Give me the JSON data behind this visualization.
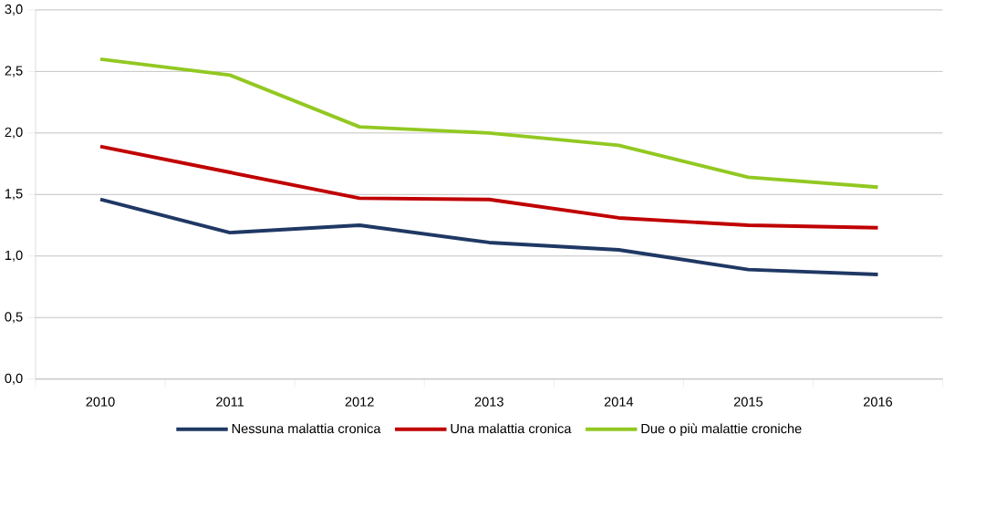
{
  "chart_data": {
    "type": "line",
    "categories": [
      "2010",
      "2011",
      "2012",
      "2013",
      "2014",
      "2015",
      "2016"
    ],
    "series": [
      {
        "name": "Nessuna malattia cronica",
        "color": "#1f3864",
        "values": [
          1.46,
          1.19,
          1.25,
          1.11,
          1.05,
          0.89,
          0.85
        ]
      },
      {
        "name": "Una malattia cronica",
        "color": "#c00000",
        "values": [
          1.89,
          1.68,
          1.47,
          1.46,
          1.31,
          1.25,
          1.23
        ]
      },
      {
        "name": "Due o più malattie croniche",
        "color": "#92c821",
        "values": [
          2.6,
          2.47,
          2.05,
          2.0,
          1.9,
          1.64,
          1.56
        ]
      }
    ],
    "ylim": [
      0,
      3
    ],
    "yticks": [
      {
        "value": 0,
        "label": "0,0"
      },
      {
        "value": 0.5,
        "label": "0,5"
      },
      {
        "value": 1,
        "label": "1,0"
      },
      {
        "value": 1.5,
        "label": "1,5"
      },
      {
        "value": 2,
        "label": "2,0"
      },
      {
        "value": 2.5,
        "label": "2,5"
      },
      {
        "value": 3,
        "label": "3,0"
      }
    ],
    "grid": "y",
    "legend": "bottom",
    "marker": "none",
    "line_style": "solid"
  }
}
